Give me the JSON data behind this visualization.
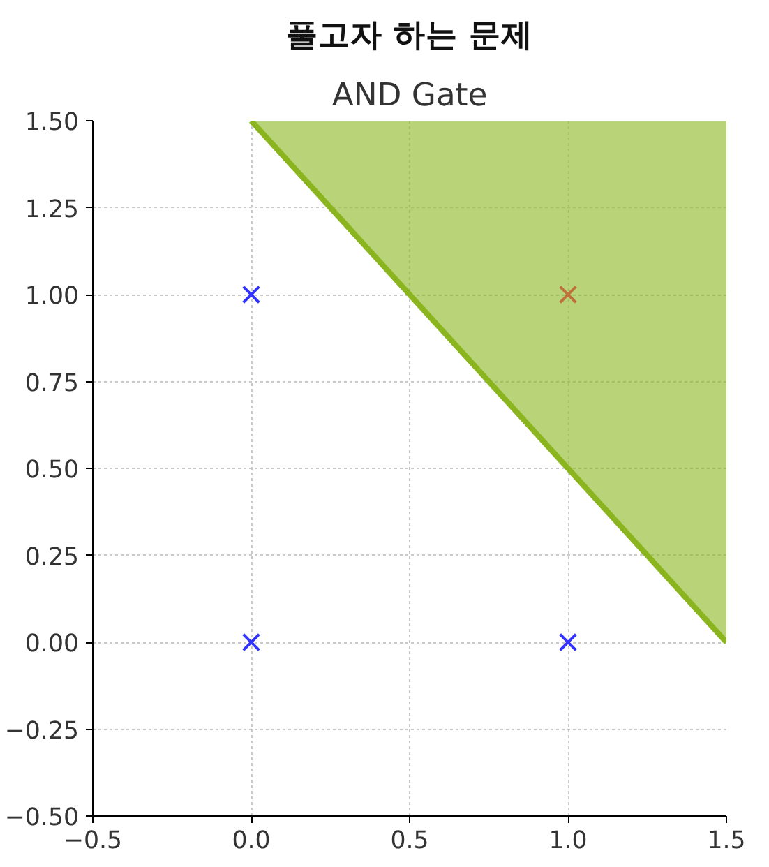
{
  "chart_data": {
    "type": "scatter",
    "title": "풀고자 하는 문제",
    "subtitle": "AND Gate",
    "grid": true,
    "xlim": [
      -0.5,
      1.5
    ],
    "ylim": [
      -0.5,
      1.5
    ],
    "xticks": [
      {
        "value": -0.5,
        "label": "−0.5"
      },
      {
        "value": 0,
        "label": "0.0"
      },
      0.5,
      {
        "value": 1,
        "label": "1.0"
      },
      1.5
    ],
    "yticks": [
      {
        "value": -0.5,
        "label": "−0.50"
      },
      {
        "value": -0.25,
        "label": "−0.25"
      },
      {
        "value": 0,
        "label": "0.00"
      },
      {
        "value": 0.25,
        "label": "0.25"
      },
      {
        "value": 0.5,
        "label": "0.50"
      },
      {
        "value": 0.75,
        "label": "0.75"
      },
      {
        "value": 1,
        "label": "1.00"
      },
      {
        "value": 1.25,
        "label": "1.25"
      },
      {
        "value": 1.5,
        "label": "1.50"
      }
    ],
    "series": [
      {
        "color": "#3333ff",
        "marker": "cross",
        "x": [
          0,
          0,
          1
        ],
        "values": [
          0,
          1,
          0
        ]
      },
      {
        "color": "#c0703a",
        "marker": "cross",
        "x": [
          1
        ],
        "values": [
          1
        ]
      },
      {
        "type": "line",
        "color": "#8ab51e",
        "x": [
          0,
          1.5
        ],
        "values": [
          1.5,
          0
        ],
        "lower": [
          1.5,
          0
        ],
        "upper": [
          1.5,
          1.5
        ]
      }
    ]
  }
}
